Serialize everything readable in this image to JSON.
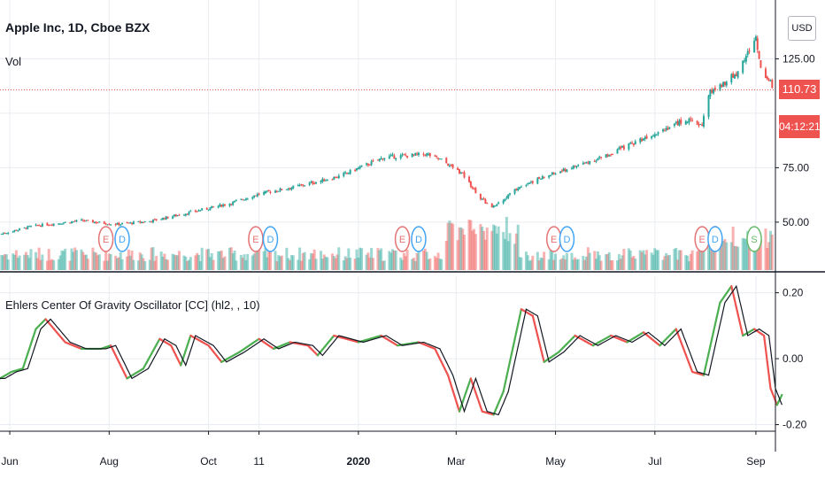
{
  "header": {
    "title": "Apple Inc, 1D, Cboe BZX",
    "volume_label": "Vol",
    "currency": "USD",
    "last_price": "110.73",
    "countdown": "04:12:21"
  },
  "oscillator": {
    "label": "Ehlers Center Of Gravity Oscillator [CC] (hl2, , 10)"
  },
  "colors": {
    "up": "#26a69a",
    "down": "#ef5350",
    "osc_up": "#4caf50",
    "osc_down": "#ef5350",
    "signal": "#131722",
    "grid": "#e9ecf2",
    "axis_text": "#131722",
    "earnings": "#e57373",
    "dividends": "#42a5f5",
    "split": "#66bb6a"
  },
  "chart_data": [
    {
      "type": "candlestick",
      "title": "Apple Inc, 1D, Cboe BZX",
      "y_ticks": [
        50,
        75,
        125
      ],
      "y_tick_labels": [
        "50.00",
        "75.00",
        "125.00"
      ],
      "ylim": [
        28,
        152
      ],
      "last_value": 110.73,
      "x_ticks": [
        "Jun",
        "Aug",
        "Oct",
        "11",
        "2020",
        "Mar",
        "May",
        "Jul",
        "Sep"
      ],
      "x_tick_dates": [
        "2019-06-01",
        "2019-08-01",
        "2019-10-01",
        "2019-11-01",
        "2020-01-01",
        "2020-03-01",
        "2020-05-01",
        "2020-07-01",
        "2020-09-01"
      ],
      "x_range": [
        "2019-05-26",
        "2020-09-13"
      ],
      "close_anchors": [
        [
          "2019-05-26",
          44.5
        ],
        [
          "2019-06-15",
          48.2
        ],
        [
          "2019-07-15",
          50.7
        ],
        [
          "2019-08-05",
          49.0
        ],
        [
          "2019-08-25",
          50.3
        ],
        [
          "2019-09-20",
          54.5
        ],
        [
          "2019-10-15",
          58.8
        ],
        [
          "2019-11-01",
          63.0
        ],
        [
          "2019-11-25",
          66.5
        ],
        [
          "2019-12-20",
          71.0
        ],
        [
          "2020-01-17",
          79.8
        ],
        [
          "2020-02-12",
          81.2
        ],
        [
          "2020-02-21",
          78.5
        ],
        [
          "2020-03-05",
          72.0
        ],
        [
          "2020-03-16",
          61.0
        ],
        [
          "2020-03-23",
          56.5
        ],
        [
          "2020-04-10",
          67.0
        ],
        [
          "2020-05-01",
          72.5
        ],
        [
          "2020-06-01",
          80.5
        ],
        [
          "2020-07-01",
          91.0
        ],
        [
          "2020-07-20",
          97.0
        ],
        [
          "2020-07-30",
          94.5
        ],
        [
          "2020-08-03",
          109.0
        ],
        [
          "2020-08-20",
          118.0
        ],
        [
          "2020-09-01",
          134.5
        ],
        [
          "2020-09-04",
          120.5
        ],
        [
          "2020-09-13",
          110.73
        ]
      ],
      "events": [
        {
          "date": "2019-07-30",
          "label": "E",
          "kind": "earnings"
        },
        {
          "date": "2019-08-09",
          "label": "D",
          "kind": "dividends"
        },
        {
          "date": "2019-10-30",
          "label": "E",
          "kind": "earnings"
        },
        {
          "date": "2019-11-08",
          "label": "D",
          "kind": "dividends"
        },
        {
          "date": "2020-01-28",
          "label": "E",
          "kind": "earnings"
        },
        {
          "date": "2020-02-07",
          "label": "D",
          "kind": "dividends"
        },
        {
          "date": "2020-04-30",
          "label": "E",
          "kind": "earnings"
        },
        {
          "date": "2020-05-08",
          "label": "D",
          "kind": "dividends"
        },
        {
          "date": "2020-07-30",
          "label": "E",
          "kind": "earnings"
        },
        {
          "date": "2020-08-07",
          "label": "D",
          "kind": "dividends"
        },
        {
          "date": "2020-08-31",
          "label": "S",
          "kind": "split"
        }
      ]
    },
    {
      "type": "line",
      "title": "Ehlers Center Of Gravity Oscillator [CC] (hl2, , 10)",
      "y_ticks": [
        0.2,
        0.0,
        -0.2
      ],
      "y_tick_labels": [
        "0.20",
        "0.00",
        "-0.20"
      ],
      "ylim": [
        -0.22,
        0.25
      ],
      "anchors": [
        [
          "2019-05-26",
          -0.06
        ],
        [
          "2019-06-02",
          -0.04
        ],
        [
          "2019-06-09",
          -0.03
        ],
        [
          "2019-06-17",
          0.09
        ],
        [
          "2019-06-23",
          0.12
        ],
        [
          "2019-07-05",
          0.05
        ],
        [
          "2019-07-15",
          0.03
        ],
        [
          "2019-07-27",
          0.03
        ],
        [
          "2019-08-02",
          0.04
        ],
        [
          "2019-08-12",
          -0.06
        ],
        [
          "2019-08-22",
          -0.03
        ],
        [
          "2019-09-01",
          0.06
        ],
        [
          "2019-09-08",
          0.04
        ],
        [
          "2019-09-14",
          -0.02
        ],
        [
          "2019-09-20",
          0.07
        ],
        [
          "2019-10-01",
          0.04
        ],
        [
          "2019-10-09",
          -0.01
        ],
        [
          "2019-10-20",
          0.02
        ],
        [
          "2019-11-01",
          0.06
        ],
        [
          "2019-11-10",
          0.03
        ],
        [
          "2019-11-20",
          0.05
        ],
        [
          "2019-12-01",
          0.04
        ],
        [
          "2019-12-07",
          0.01
        ],
        [
          "2019-12-17",
          0.07
        ],
        [
          "2020-01-01",
          0.05
        ],
        [
          "2020-01-15",
          0.07
        ],
        [
          "2020-01-25",
          0.04
        ],
        [
          "2020-02-07",
          0.05
        ],
        [
          "2020-02-17",
          0.03
        ],
        [
          "2020-02-25",
          -0.05
        ],
        [
          "2020-03-03",
          -0.16
        ],
        [
          "2020-03-10",
          -0.06
        ],
        [
          "2020-03-17",
          -0.16
        ],
        [
          "2020-03-24",
          -0.17
        ],
        [
          "2020-03-30",
          -0.1
        ],
        [
          "2020-04-10",
          0.15
        ],
        [
          "2020-04-17",
          0.13
        ],
        [
          "2020-04-24",
          -0.01
        ],
        [
          "2020-05-03",
          0.02
        ],
        [
          "2020-05-13",
          0.07
        ],
        [
          "2020-05-24",
          0.04
        ],
        [
          "2020-06-04",
          0.07
        ],
        [
          "2020-06-14",
          0.05
        ],
        [
          "2020-06-24",
          0.08
        ],
        [
          "2020-07-04",
          0.04
        ],
        [
          "2020-07-14",
          0.09
        ],
        [
          "2020-07-24",
          -0.04
        ],
        [
          "2020-07-31",
          -0.05
        ],
        [
          "2020-08-10",
          0.17
        ],
        [
          "2020-08-17",
          0.22
        ],
        [
          "2020-08-24",
          0.07
        ],
        [
          "2020-08-31",
          0.09
        ],
        [
          "2020-09-06",
          0.07
        ],
        [
          "2020-09-10",
          -0.09
        ],
        [
          "2020-09-14",
          -0.14
        ],
        [
          "2020-09-17",
          -0.11
        ]
      ]
    }
  ]
}
